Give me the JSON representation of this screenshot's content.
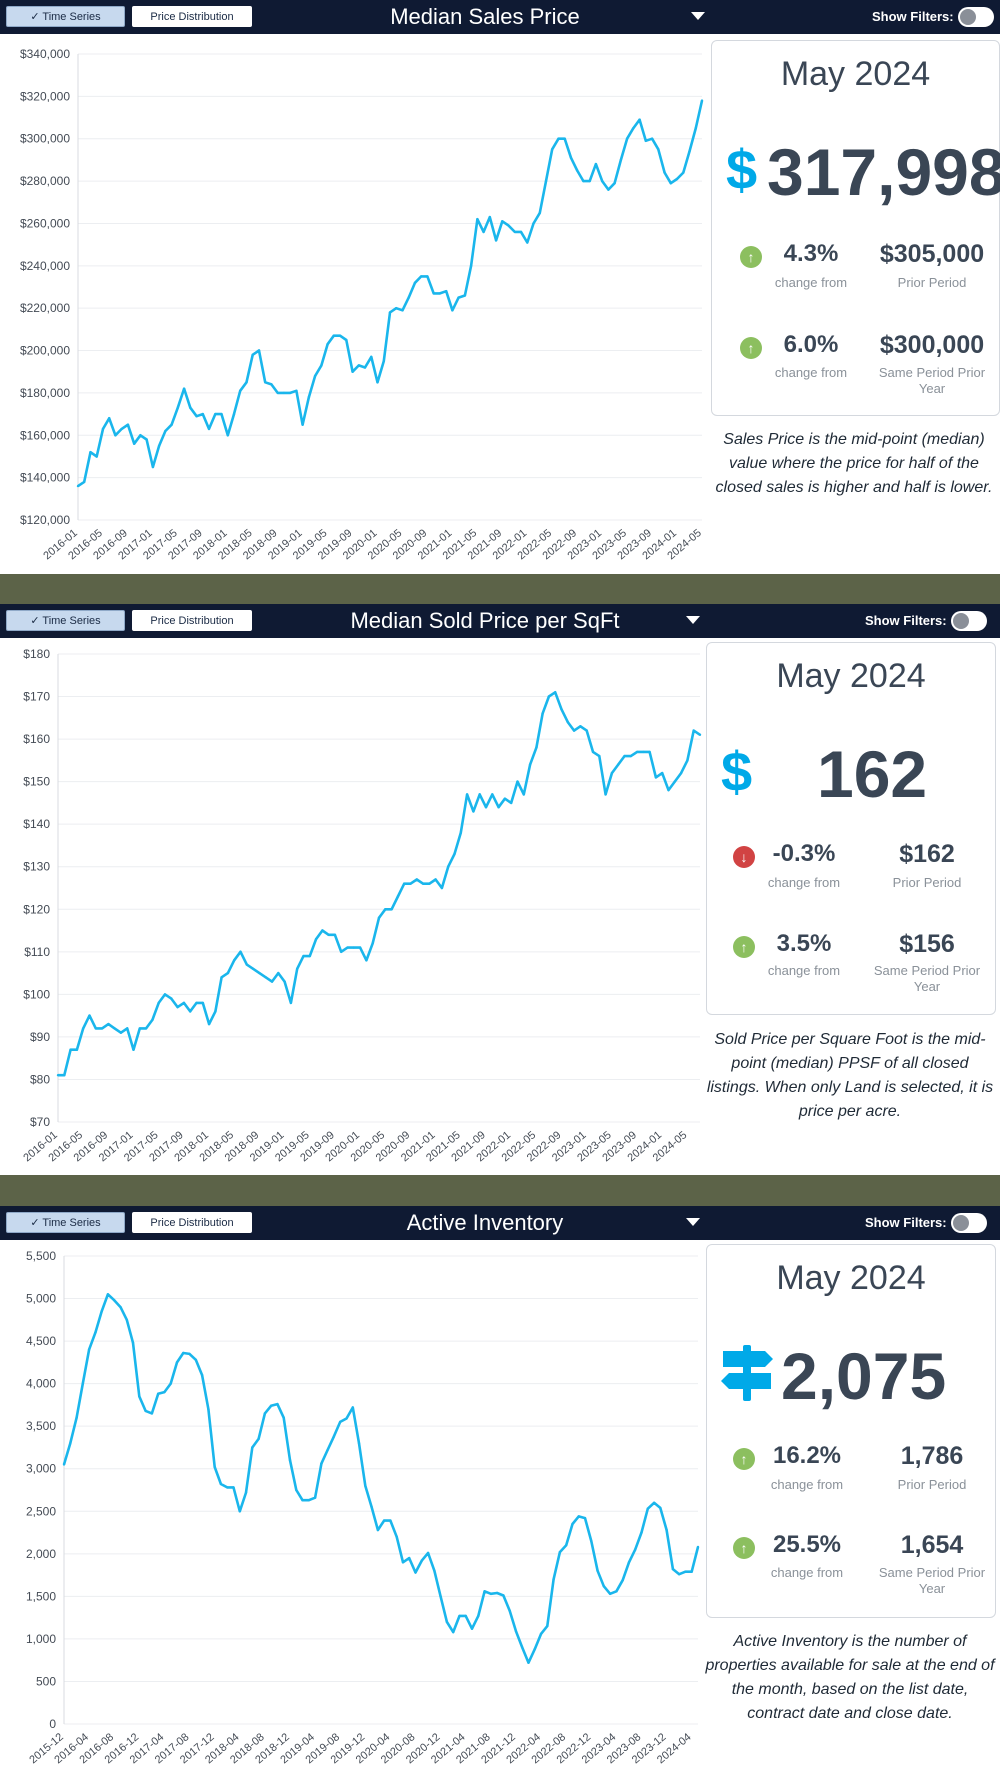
{
  "common": {
    "tab_time_series": "✓ Time Series",
    "tab_price_distribution": "Price Distribution",
    "show_filters": "Show Filters:",
    "change_from": "change from",
    "prior_period": "Prior Period",
    "same_period_prior_year": "Same Period Prior Year"
  },
  "colors": {
    "line": "#1ab6ec",
    "up": "#8cbf5f",
    "down": "#d14343",
    "header": "#0f1a33"
  },
  "panels": [
    {
      "title": "Median Sales Price",
      "period": "May 2024",
      "icon": "dollar-icon",
      "icon_glyph": "$",
      "value": "317,998",
      "change1": {
        "direction": "up",
        "pct": "4.3%",
        "value": "$305,000"
      },
      "change2": {
        "direction": "up",
        "pct": "6.0%",
        "value": "$300,000"
      },
      "description": "Sales Price is the mid-point (median) value where the price for half of the closed sales is higher and half is lower."
    },
    {
      "title": "Median Sold Price per SqFt",
      "period": "May 2024",
      "icon": "dollar-icon",
      "icon_glyph": "$",
      "value": "162",
      "change1": {
        "direction": "down",
        "pct": "-0.3%",
        "value": "$162"
      },
      "change2": {
        "direction": "up",
        "pct": "3.5%",
        "value": "$156"
      },
      "description": "Sold Price per Square Foot is the mid-point (median) PPSF of all closed listings. When only Land is selected, it is price per acre."
    },
    {
      "title": "Active Inventory",
      "period": "May 2024",
      "icon": "signpost-icon",
      "icon_glyph": "",
      "value": "2,075",
      "change1": {
        "direction": "up",
        "pct": "16.2%",
        "value": "1,786"
      },
      "change2": {
        "direction": "up",
        "pct": "25.5%",
        "value": "1,654"
      },
      "description": "Active Inventory is the number of properties available for sale at the end of the month, based on the list date, contract date and close date."
    }
  ],
  "chart_data": [
    {
      "type": "line",
      "title": "Median Sales Price",
      "ylim": [
        120000,
        340000
      ],
      "y_ticks": [
        "$340,000",
        "$320,000",
        "$300,000",
        "$280,000",
        "$260,000",
        "$240,000",
        "$220,000",
        "$200,000",
        "$180,000",
        "$160,000",
        "$140,000",
        "$120,000"
      ],
      "x_tick_labels": [
        "2016-01",
        "2016-05",
        "2016-09",
        "2017-01",
        "2017-05",
        "2017-09",
        "2018-01",
        "2018-05",
        "2018-09",
        "2019-01",
        "2019-05",
        "2019-09",
        "2020-01",
        "2020-05",
        "2020-09",
        "2021-01",
        "2021-05",
        "2021-09",
        "2022-01",
        "2022-05",
        "2022-09",
        "2023-01",
        "2023-05",
        "2023-09",
        "2024-01",
        "2024-05"
      ],
      "x_start": "2016-01",
      "grid": true,
      "series": [
        {
          "values": [
            136000,
            138000,
            152000,
            150000,
            163000,
            168000,
            160000,
            163000,
            165000,
            156000,
            160000,
            158000,
            145000,
            155000,
            162000,
            165000,
            173000,
            182000,
            173000,
            169000,
            170000,
            163000,
            170000,
            170000,
            160000,
            170000,
            181000,
            185000,
            198000,
            200000,
            185000,
            184000,
            180000,
            180000,
            180000,
            181000,
            165000,
            178000,
            188000,
            193000,
            203000,
            207000,
            207000,
            205000,
            190000,
            193000,
            192000,
            197000,
            185000,
            195000,
            218000,
            220000,
            219000,
            225000,
            232000,
            235000,
            235000,
            227000,
            227000,
            228000,
            219000,
            225000,
            226000,
            240000,
            262000,
            256000,
            263000,
            252000,
            261000,
            259000,
            256000,
            256000,
            251000,
            260000,
            265000,
            280000,
            295000,
            300000,
            300000,
            291000,
            285000,
            280000,
            280000,
            288000,
            280000,
            276000,
            279000,
            290000,
            300000,
            305000,
            309000,
            299000,
            300000,
            295000,
            284000,
            279000,
            281000,
            284000,
            294000,
            305000,
            318000
          ]
        }
      ]
    },
    {
      "type": "line",
      "title": "Median Sold Price per SqFt",
      "ylim": [
        70,
        180
      ],
      "y_ticks": [
        "$180",
        "$170",
        "$160",
        "$150",
        "$140",
        "$130",
        "$120",
        "$110",
        "$100",
        "$90",
        "$80",
        "$70"
      ],
      "x_tick_labels": [
        "2016-01",
        "2016-05",
        "2016-09",
        "2017-01",
        "2017-05",
        "2017-09",
        "2018-01",
        "2018-05",
        "2018-09",
        "2019-01",
        "2019-05",
        "2019-09",
        "2020-01",
        "2020-05",
        "2020-09",
        "2021-01",
        "2021-05",
        "2021-09",
        "2022-01",
        "2022-05",
        "2022-09",
        "2023-01",
        "2023-05",
        "2023-09",
        "2024-01",
        "2024-05"
      ],
      "x_start": "2016-01",
      "grid": true,
      "series": [
        {
          "values": [
            81,
            81,
            87,
            87,
            92,
            95,
            92,
            92,
            93,
            92,
            91,
            92,
            87,
            92,
            92,
            94,
            98,
            100,
            99,
            97,
            98,
            96,
            98,
            98,
            93,
            96,
            104,
            105,
            108,
            110,
            107,
            106,
            105,
            104,
            103,
            105,
            103,
            98,
            106,
            109,
            109,
            113,
            115,
            114,
            114,
            110,
            111,
            111,
            111,
            108,
            112,
            118,
            120,
            120,
            123,
            126,
            126,
            127,
            126,
            126,
            127,
            125,
            130,
            133,
            138,
            147,
            143,
            147,
            144,
            147,
            144,
            146,
            145,
            150,
            147,
            154,
            158,
            166,
            170,
            171,
            167,
            164,
            162,
            163,
            162,
            157,
            156,
            147,
            152,
            154,
            156,
            156,
            157,
            157,
            157,
            151,
            152,
            148,
            150,
            152,
            155,
            162,
            161
          ]
        }
      ]
    },
    {
      "type": "line",
      "title": "Active Inventory",
      "ylim": [
        0,
        5500
      ],
      "y_ticks": [
        "5,500",
        "5,000",
        "4,500",
        "4,000",
        "3,500",
        "3,000",
        "2,500",
        "2,000",
        "1,500",
        "1,000",
        "500",
        "0"
      ],
      "x_tick_labels": [
        "2015-12",
        "2016-04",
        "2016-08",
        "2016-12",
        "2017-04",
        "2017-08",
        "2017-12",
        "2018-04",
        "2018-08",
        "2018-12",
        "2019-04",
        "2019-08",
        "2019-12",
        "2020-04",
        "2020-08",
        "2020-12",
        "2021-04",
        "2021-08",
        "2021-12",
        "2022-04",
        "2022-08",
        "2022-12",
        "2023-04",
        "2023-08",
        "2023-12",
        "2024-04"
      ],
      "x_start": "2015-12",
      "grid": true,
      "series": [
        {
          "values": [
            3050,
            3300,
            3600,
            4000,
            4400,
            4600,
            4850,
            5050,
            4980,
            4900,
            4750,
            4480,
            3850,
            3680,
            3650,
            3880,
            3900,
            4000,
            4250,
            4360,
            4350,
            4280,
            4100,
            3700,
            3020,
            2820,
            2780,
            2780,
            2500,
            2720,
            3250,
            3350,
            3650,
            3740,
            3760,
            3600,
            3100,
            2750,
            2630,
            2630,
            2660,
            3060,
            3220,
            3380,
            3550,
            3590,
            3720,
            3300,
            2800,
            2550,
            2280,
            2390,
            2390,
            2200,
            1900,
            1950,
            1780,
            1920,
            2010,
            1800,
            1500,
            1200,
            1080,
            1270,
            1270,
            1120,
            1270,
            1560,
            1530,
            1540,
            1510,
            1330,
            1090,
            900,
            720,
            880,
            1060,
            1150,
            1700,
            2020,
            2100,
            2350,
            2440,
            2420,
            2150,
            1800,
            1620,
            1530,
            1560,
            1690,
            1900,
            2050,
            2250,
            2530,
            2600,
            2540,
            2280,
            1820,
            1760,
            1790,
            1790,
            2080
          ]
        }
      ]
    }
  ]
}
